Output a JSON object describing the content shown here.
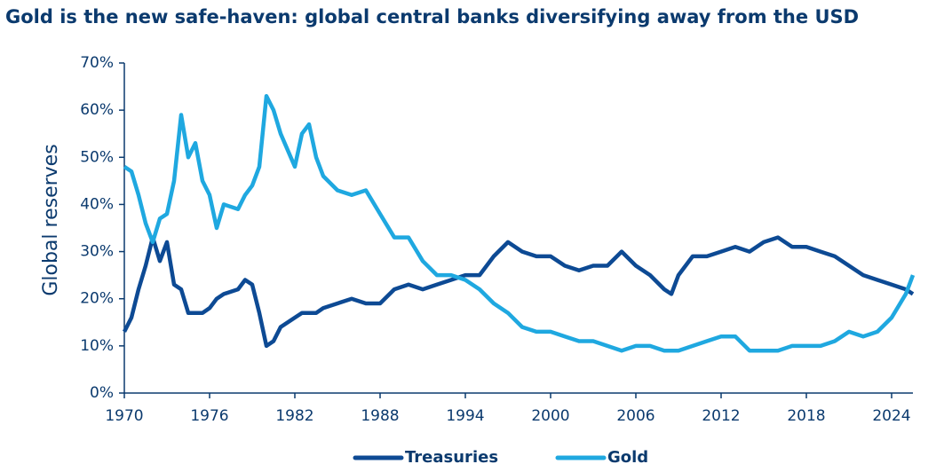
{
  "chart_data": {
    "type": "line",
    "title": "Gold is the new safe-haven: global central banks diversifying away from the USD",
    "y_label": "Global reserves",
    "x": [
      1970,
      1970.5,
      1971,
      1971.5,
      1972,
      1972.5,
      1973,
      1973.5,
      1974,
      1974.5,
      1975,
      1975.5,
      1976,
      1976.5,
      1977,
      1978,
      1978.5,
      1979,
      1979.5,
      1980,
      1980.5,
      1981,
      1982,
      1982.5,
      1983,
      1983.5,
      1984,
      1985,
      1986,
      1987,
      1988,
      1989,
      1990,
      1991,
      1992,
      1993,
      1994,
      1995,
      1996,
      1997,
      1998,
      1999,
      2000,
      2001,
      2002,
      2003,
      2004,
      2005,
      2006,
      2007,
      2008,
      2008.5,
      2009,
      2010,
      2011,
      2012,
      2013,
      2014,
      2015,
      2016,
      2017,
      2018,
      2019,
      2020,
      2021,
      2022,
      2023,
      2024,
      2025,
      2025.5
    ],
    "series": [
      {
        "name": "Treasuries",
        "color": "#0d4a94",
        "values": [
          13,
          16,
          22,
          27,
          33,
          28,
          32,
          23,
          22,
          17,
          17,
          17,
          18,
          20,
          21,
          22,
          24,
          23,
          17,
          10,
          11,
          14,
          16,
          17,
          17,
          17,
          18,
          19,
          20,
          19,
          19,
          22,
          23,
          22,
          23,
          24,
          25,
          25,
          29,
          32,
          30,
          29,
          29,
          27,
          26,
          27,
          27,
          30,
          27,
          25,
          22,
          21,
          25,
          29,
          29,
          30,
          31,
          30,
          32,
          33,
          31,
          31,
          30,
          29,
          27,
          25,
          24,
          23,
          22,
          21
        ]
      },
      {
        "name": "Gold",
        "color": "#1fa8e0",
        "values": [
          48,
          47,
          42,
          36,
          32,
          37,
          38,
          45,
          59,
          50,
          53,
          45,
          42,
          35,
          40,
          39,
          42,
          44,
          48,
          63,
          60,
          55,
          48,
          55,
          57,
          50,
          46,
          43,
          42,
          43,
          38,
          33,
          33,
          28,
          25,
          25,
          24,
          22,
          19,
          17,
          14,
          13,
          13,
          12,
          11,
          11,
          10,
          9,
          10,
          10,
          9,
          9,
          9,
          10,
          11,
          12,
          12,
          9,
          9,
          9,
          10,
          10,
          10,
          11,
          13,
          12,
          13,
          16,
          21,
          25
        ]
      }
    ],
    "xlim": [
      1970,
      2025.5
    ],
    "xticks": [
      1970,
      1976,
      1982,
      1988,
      1994,
      2000,
      2006,
      2012,
      2018,
      2024
    ],
    "ylim": [
      0,
      70
    ],
    "yticks": [
      {
        "value": 0,
        "label": "0%"
      },
      {
        "value": 10,
        "label": "10%"
      },
      {
        "value": 20,
        "label": "20%"
      },
      {
        "value": 30,
        "label": "30%"
      },
      {
        "value": 40,
        "label": "40%"
      },
      {
        "value": 50,
        "label": "50%"
      },
      {
        "value": 60,
        "label": "60%"
      },
      {
        "value": 70,
        "label": "70%"
      }
    ],
    "grid": false
  }
}
